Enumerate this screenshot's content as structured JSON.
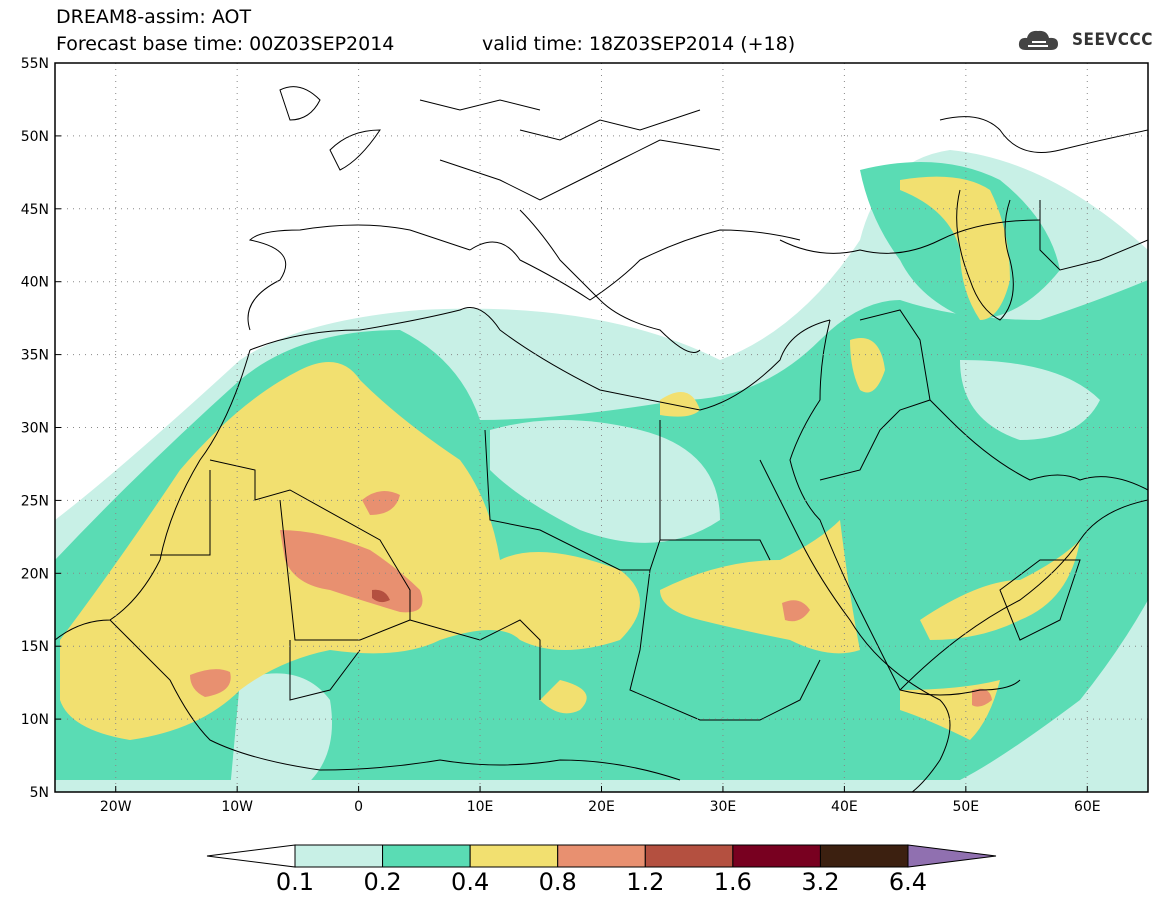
{
  "header": {
    "title_line1": "DREAM8-assim: AOT",
    "forecast_base": "Forecast base time: 00Z03SEP2014",
    "valid_time": "valid time: 18Z03SEP2014 (+18)",
    "logo_text": "SEEVCCC"
  },
  "map": {
    "lat_labels": [
      "55N",
      "50N",
      "45N",
      "40N",
      "35N",
      "30N",
      "25N",
      "20N",
      "15N",
      "10N",
      "5N"
    ],
    "lon_labels": [
      "20W",
      "10W",
      "0",
      "10E",
      "20E",
      "30E",
      "40E",
      "50E",
      "60E"
    ],
    "lat_range": [
      5,
      55
    ],
    "lon_range": [
      -25,
      65
    ],
    "grid": "dotted",
    "variable": "AOT"
  },
  "colorbar": {
    "levels": [
      "0.1",
      "0.2",
      "0.4",
      "0.8",
      "1.2",
      "1.6",
      "3.2",
      "6.4"
    ],
    "colors": [
      "#c8f0e6",
      "#5adcb4",
      "#f2e070",
      "#e89070",
      "#b45040",
      "#780020",
      "#3c2010",
      "#9070b0"
    ]
  }
}
